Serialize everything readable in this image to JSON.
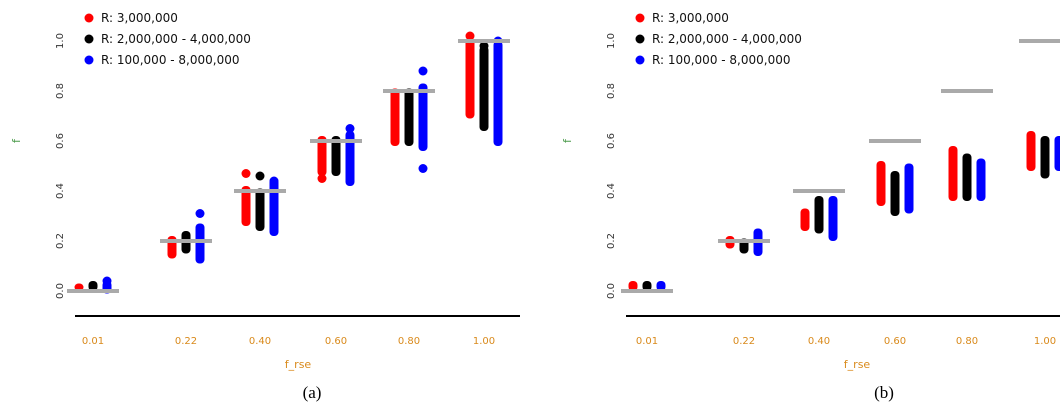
{
  "chart_data": [
    {
      "type": "scatter",
      "panel_label": "(a)",
      "xlabel": "f_rse",
      "ylabel": "f",
      "categories": [
        "0.01",
        "0.22",
        "0.40",
        "0.60",
        "0.80",
        "1.00"
      ],
      "yticks": [
        "0.0",
        "0.2",
        "0.4",
        "0.6",
        "0.8",
        "1.0"
      ],
      "ylim": [
        -0.1,
        1.05
      ],
      "legend_position": "top-left",
      "reference_values": [
        0.0,
        0.2,
        0.4,
        0.6,
        0.8,
        1.0
      ],
      "series": [
        {
          "name": "R: 3,000,000",
          "color": "#ff0000",
          "ranges": [
            [
              0.0,
              0.03
            ],
            [
              0.13,
              0.22
            ],
            [
              0.26,
              0.42
            ],
            [
              0.46,
              0.62
            ],
            [
              0.58,
              0.81
            ],
            [
              0.69,
              1.01
            ]
          ],
          "outliers": [
            [],
            [],
            [
              0.47
            ],
            [
              0.45
            ],
            [
              0.76
            ],
            [
              1.02
            ]
          ]
        },
        {
          "name": "R: 2,000,000 - 4,000,000",
          "color": "#000000",
          "ranges": [
            [
              0.0,
              0.04
            ],
            [
              0.15,
              0.24
            ],
            [
              0.24,
              0.41
            ],
            [
              0.46,
              0.62
            ],
            [
              0.58,
              0.81
            ],
            [
              0.64,
              0.98
            ]
          ],
          "outliers": [
            [],
            [],
            [
              0.46
            ],
            [],
            [
              0.79
            ],
            [
              0.98
            ]
          ]
        },
        {
          "name": "R: 100,000 - 8,000,000",
          "color": "#0000ff",
          "ranges": [
            [
              -0.01,
              0.04
            ],
            [
              0.11,
              0.27
            ],
            [
              0.22,
              0.45
            ],
            [
              0.42,
              0.64
            ],
            [
              0.56,
              0.83
            ],
            [
              0.58,
              1.0
            ]
          ],
          "outliers": [
            [
              0.04
            ],
            [
              0.31
            ],
            [
              0.44
            ],
            [
              0.65
            ],
            [
              0.49,
              0.88
            ],
            [
              1.0
            ]
          ]
        }
      ]
    },
    {
      "type": "scatter",
      "panel_label": "(b)",
      "xlabel": "f_rse",
      "ylabel": "f",
      "categories": [
        "0.01",
        "0.22",
        "0.40",
        "0.60",
        "0.80",
        "1.00"
      ],
      "yticks": [
        "0.0",
        "0.2",
        "0.4",
        "0.6",
        "0.8",
        "1.0"
      ],
      "ylim": [
        -0.1,
        1.05
      ],
      "legend_position": "top-left",
      "reference_values": [
        0.0,
        0.2,
        0.4,
        0.6,
        0.8,
        1.0
      ],
      "series": [
        {
          "name": "R: 3,000,000",
          "color": "#ff0000",
          "ranges": [
            [
              0.0,
              0.04
            ],
            [
              0.17,
              0.22
            ],
            [
              0.24,
              0.33
            ],
            [
              0.34,
              0.52
            ],
            [
              0.36,
              0.58
            ],
            [
              0.48,
              0.64
            ]
          ],
          "outliers": [
            [],
            [],
            [],
            [],
            [],
            []
          ]
        },
        {
          "name": "R: 2,000,000 - 4,000,000",
          "color": "#000000",
          "ranges": [
            [
              0.0,
              0.04
            ],
            [
              0.15,
              0.21
            ],
            [
              0.23,
              0.38
            ],
            [
              0.3,
              0.48
            ],
            [
              0.36,
              0.55
            ],
            [
              0.45,
              0.62
            ]
          ],
          "outliers": [
            [],
            [],
            [],
            [],
            [],
            []
          ]
        },
        {
          "name": "R: 100,000 - 8,000,000",
          "color": "#0000ff",
          "ranges": [
            [
              0.0,
              0.04
            ],
            [
              0.14,
              0.25
            ],
            [
              0.2,
              0.38
            ],
            [
              0.31,
              0.51
            ],
            [
              0.36,
              0.53
            ],
            [
              0.48,
              0.62
            ]
          ],
          "outliers": [
            [],
            [],
            [],
            [],
            [],
            []
          ]
        }
      ]
    }
  ]
}
